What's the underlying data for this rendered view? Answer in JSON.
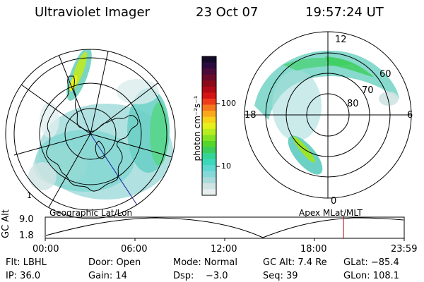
{
  "header": {
    "title": "Ultraviolet Imager",
    "date": "23 Oct 07",
    "time": "19:57:24 UT"
  },
  "colorbar": {
    "unit_label": "photon cm⁻²s⁻¹",
    "tick_100": "100",
    "tick_10": "10",
    "colors_top_to_bottom": [
      "#140a28",
      "#2a0a3e",
      "#4a0a3a",
      "#6a0a2a",
      "#8a0a1a",
      "#b00a14",
      "#d41414",
      "#ee3c1a",
      "#f5781e",
      "#f9a81c",
      "#f6d21a",
      "#e6f01c",
      "#b8ec20",
      "#84e224",
      "#54d62c",
      "#3cce5a",
      "#36d494",
      "#3cd8bc",
      "#5ed8d0",
      "#86d8d8",
      "#aadada",
      "#cfe3e3",
      "#e8eeee"
    ]
  },
  "left_map": {
    "caption": "Geographic Lat/Lon",
    "corner_label": "1"
  },
  "right_map": {
    "caption": "Apex MLat/MLT",
    "mlt_top": "12",
    "mlt_bottom": "0",
    "mlt_left": "18",
    "mlt_right": "6",
    "lat_60": "60",
    "lat_70": "70",
    "lat_80": "80"
  },
  "timeline": {
    "ylabel": "GC Alt",
    "y_high": "9.0",
    "y_low": "1.8",
    "ticks": [
      "00:00",
      "06:00",
      "12:00",
      "18:00",
      "23:59"
    ],
    "current_fraction": 0.831
  },
  "info": {
    "row1": [
      "Flt: LBHL",
      "Door: Open",
      "Mode: Normal",
      "GC Alt: 7.4 Re",
      "GLat: −85.4"
    ],
    "row2": [
      "IP: 36.0",
      "Gain: 14",
      "Dsp:    −3.0",
      "Seq: 39",
      "GLon: 108.1"
    ]
  },
  "colors": {
    "timeline_marker": "#c00000",
    "grid": "#000000",
    "coast": "#000000",
    "meridian_highlight": "#1a1aa0"
  }
}
